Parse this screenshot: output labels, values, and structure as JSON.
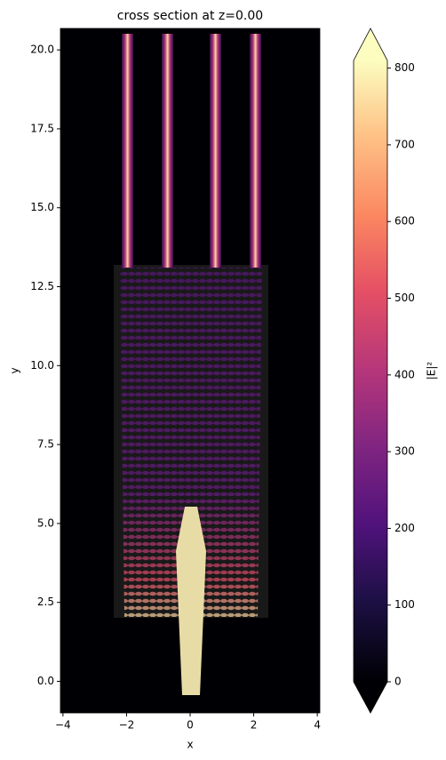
{
  "chart_data": {
    "type": "heatmap",
    "title": "cross section at z=0.00",
    "xlabel": "x",
    "ylabel": "y",
    "xlim": [
      -4.08,
      4.08
    ],
    "ylim": [
      -1.0,
      20.68
    ],
    "xticks": [
      {
        "value": -4,
        "label": "−4"
      },
      {
        "value": -2,
        "label": "−2"
      },
      0,
      2,
      4
    ],
    "yticks": [
      {
        "value": 0,
        "label": "0.0"
      },
      {
        "value": 2.5,
        "label": "2.5"
      },
      {
        "value": 5,
        "label": "5.0"
      },
      {
        "value": 7.5,
        "label": "7.5"
      },
      {
        "value": 10,
        "label": "10.0"
      },
      {
        "value": 12.5,
        "label": "12.5"
      },
      {
        "value": 15,
        "label": "15.0"
      },
      {
        "value": 17.5,
        "label": "17.5"
      },
      {
        "value": 20,
        "label": "20.0"
      }
    ],
    "colorbar": {
      "label": "|E|²",
      "colormap": "magma",
      "clim": [
        0,
        810
      ],
      "extend": "both",
      "ticks": [
        0,
        100,
        200,
        300,
        400,
        500,
        600,
        700,
        800
      ]
    }
  }
}
